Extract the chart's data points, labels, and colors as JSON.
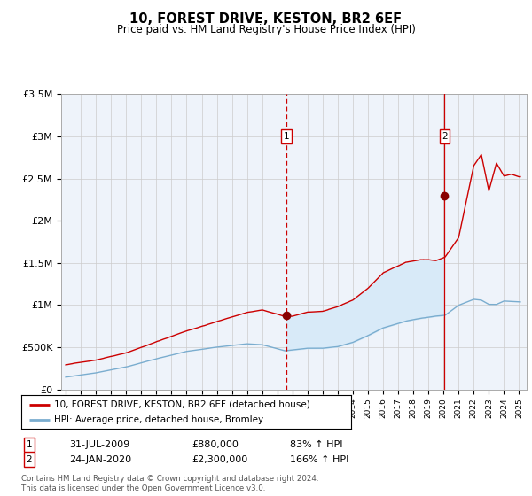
{
  "title": "10, FOREST DRIVE, KESTON, BR2 6EF",
  "subtitle": "Price paid vs. HM Land Registry's House Price Index (HPI)",
  "legend_line1": "10, FOREST DRIVE, KESTON, BR2 6EF (detached house)",
  "legend_line2": "HPI: Average price, detached house, Bromley",
  "footer": "Contains HM Land Registry data © Crown copyright and database right 2024.\nThis data is licensed under the Open Government Licence v3.0.",
  "annotation1_label": "1",
  "annotation1_date": "31-JUL-2009",
  "annotation1_price": "£880,000",
  "annotation1_pct": "83% ↑ HPI",
  "annotation1_year": 2009.58,
  "annotation1_value": 880000,
  "annotation2_label": "2",
  "annotation2_date": "24-JAN-2020",
  "annotation2_price": "£2,300,000",
  "annotation2_pct": "166% ↑ HPI",
  "annotation2_year": 2020.07,
  "annotation2_value": 2300000,
  "red_line_color": "#cc0000",
  "blue_line_color": "#7aadcf",
  "shade_color": "#d8eaf8",
  "grid_color": "#cccccc",
  "bg_color": "#ffffff",
  "plot_bg_color": "#eef3fa",
  "ylim": [
    0,
    3500000
  ],
  "yticks": [
    0,
    500000,
    1000000,
    1500000,
    2000000,
    2500000,
    3000000,
    3500000
  ],
  "ytick_labels": [
    "£0",
    "£500K",
    "£1M",
    "£1.5M",
    "£2M",
    "£2.5M",
    "£3M",
    "£3.5M"
  ],
  "xlim_start": 1994.7,
  "xlim_end": 2025.5
}
